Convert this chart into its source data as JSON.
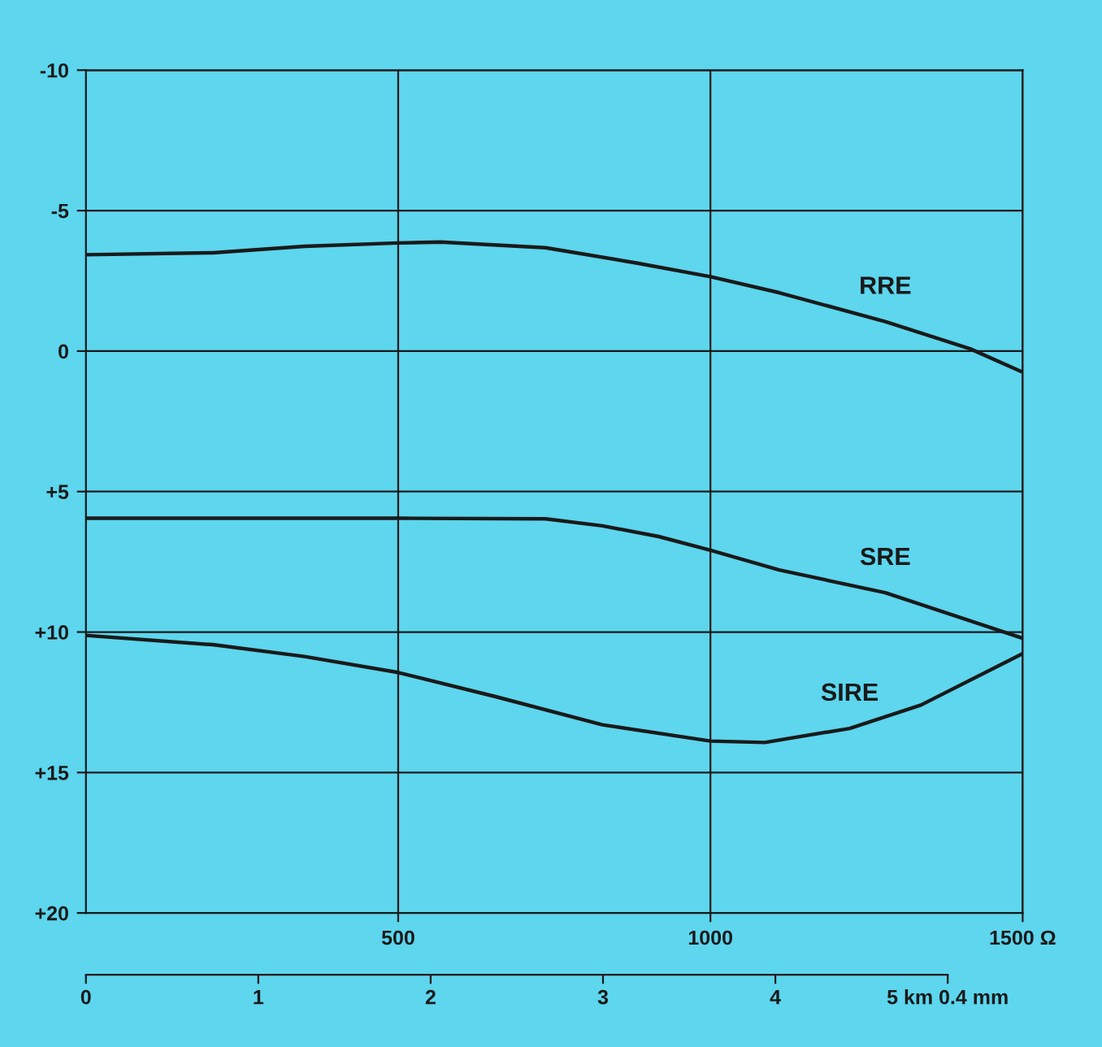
{
  "chart_data": {
    "type": "line",
    "xlim": [
      0,
      1500
    ],
    "xticks": [
      500,
      1000,
      {
        "value": 1500,
        "label": "1500 Ω"
      }
    ],
    "ylim": [
      20,
      -10
    ],
    "yticks": [
      -10,
      -5,
      0,
      {
        "value": 5,
        "label": "+5"
      },
      {
        "value": 10,
        "label": "+10"
      },
      {
        "value": 15,
        "label": "+15"
      },
      {
        "value": 20,
        "label": "+20"
      }
    ],
    "x2lim": [
      0,
      5
    ],
    "x2ticks": [
      0,
      1,
      2,
      3,
      4,
      {
        "value": 5,
        "label": "5 km 0.4 mm"
      }
    ],
    "grid": true,
    "legend": false,
    "marker": "none",
    "line_style": "solid",
    "series": [
      {
        "name": "RRE",
        "color": "#1a1a1a",
        "x": [
          0,
          203,
          350,
          500,
          568,
          736,
          883,
          1000,
          1110,
          1280,
          1416,
          1500
        ],
        "values": [
          -3.43,
          -3.5,
          -3.73,
          -3.85,
          -3.88,
          -3.68,
          -3.13,
          -2.65,
          -2.08,
          -1.05,
          -0.08,
          0.75
        ]
      },
      {
        "name": "SRE",
        "color": "#1a1a1a",
        "x": [
          0,
          350,
          500,
          736,
          827,
          917,
          1000,
          1110,
          1280,
          1500
        ],
        "values": [
          5.95,
          5.95,
          5.95,
          5.97,
          6.22,
          6.6,
          7.09,
          7.79,
          8.6,
          10.22
        ]
      },
      {
        "name": "SIRE",
        "color": "#1a1a1a",
        "x": [
          0,
          203,
          350,
          500,
          656,
          827,
          1000,
          1087,
          1223,
          1337,
          1500
        ],
        "values": [
          10.12,
          10.45,
          10.87,
          11.44,
          12.3,
          13.3,
          13.88,
          13.93,
          13.43,
          12.6,
          10.77
        ]
      }
    ]
  }
}
